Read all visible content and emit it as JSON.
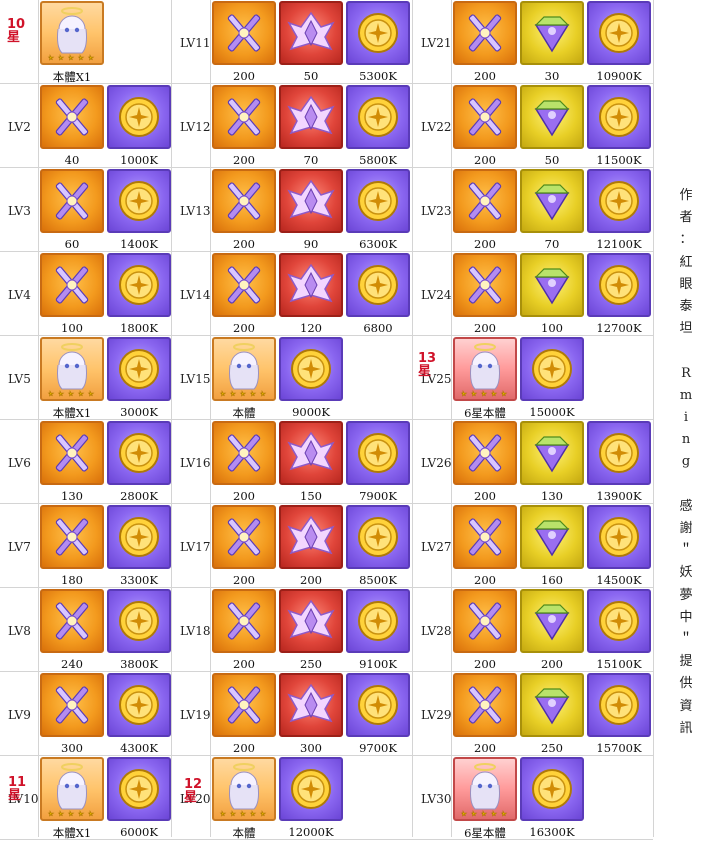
{
  "icons": {
    "orange": "crossed-blades-icon",
    "purple": "gold-coin-icon",
    "red": "winged-crystal-icon",
    "yellow": "green-gem-icon",
    "char": "character-portrait-icon"
  },
  "star_notes": [
    "10\n星",
    "11\n星",
    "12\n星",
    "13\n星"
  ],
  "credit_lines": [
    "作",
    "者",
    "：",
    "紅",
    "眼",
    "泰",
    "坦",
    "",
    "R",
    "m",
    "i",
    "n",
    "g",
    "",
    "感",
    "謝",
    "＂",
    "妖",
    "夢",
    "中",
    "＂",
    "提",
    "供",
    "資",
    "訊"
  ],
  "columns": [
    {
      "rows": [
        {
          "label": "",
          "items": [
            {
              "type": "char",
              "value": "本體X1"
            }
          ]
        },
        {
          "label": "LV2",
          "items": [
            {
              "type": "orange",
              "value": "40"
            },
            {
              "type": "purple",
              "value": "1000K"
            }
          ]
        },
        {
          "label": "LV3",
          "items": [
            {
              "type": "orange",
              "value": "60"
            },
            {
              "type": "purple",
              "value": "1400K"
            }
          ]
        },
        {
          "label": "LV4",
          "items": [
            {
              "type": "orange",
              "value": "100"
            },
            {
              "type": "purple",
              "value": "1800K"
            }
          ]
        },
        {
          "label": "LV5",
          "items": [
            {
              "type": "char",
              "value": "本體X1"
            },
            {
              "type": "purple",
              "value": "3000K"
            }
          ]
        },
        {
          "label": "LV6",
          "items": [
            {
              "type": "orange",
              "value": "130"
            },
            {
              "type": "purple",
              "value": "2800K"
            }
          ]
        },
        {
          "label": "LV7",
          "items": [
            {
              "type": "orange",
              "value": "180"
            },
            {
              "type": "purple",
              "value": "3300K"
            }
          ]
        },
        {
          "label": "LV8",
          "items": [
            {
              "type": "orange",
              "value": "240"
            },
            {
              "type": "purple",
              "value": "3800K"
            }
          ]
        },
        {
          "label": "LV9",
          "items": [
            {
              "type": "orange",
              "value": "300"
            },
            {
              "type": "purple",
              "value": "4300K"
            }
          ]
        },
        {
          "label": "LV10",
          "items": [
            {
              "type": "char",
              "value": "本體X1"
            },
            {
              "type": "purple",
              "value": "6000K"
            }
          ]
        }
      ]
    },
    {
      "rows": [
        {
          "label": "LV11",
          "items": [
            {
              "type": "orange",
              "value": "200"
            },
            {
              "type": "red",
              "value": "50"
            },
            {
              "type": "purple",
              "value": "5300K"
            }
          ]
        },
        {
          "label": "LV12",
          "items": [
            {
              "type": "orange",
              "value": "200"
            },
            {
              "type": "red",
              "value": "70"
            },
            {
              "type": "purple",
              "value": "5800K"
            }
          ]
        },
        {
          "label": "LV13",
          "items": [
            {
              "type": "orange",
              "value": "200"
            },
            {
              "type": "red",
              "value": "90"
            },
            {
              "type": "purple",
              "value": "6300K"
            }
          ]
        },
        {
          "label": "LV14",
          "items": [
            {
              "type": "orange",
              "value": "200"
            },
            {
              "type": "red",
              "value": "120"
            },
            {
              "type": "purple",
              "value": "6800"
            }
          ]
        },
        {
          "label": "LV15",
          "items": [
            {
              "type": "char",
              "value": "本體"
            },
            {
              "type": "purple",
              "value": "9000K"
            }
          ]
        },
        {
          "label": "LV16",
          "items": [
            {
              "type": "orange",
              "value": "200"
            },
            {
              "type": "red",
              "value": "150"
            },
            {
              "type": "purple",
              "value": "7900K"
            }
          ]
        },
        {
          "label": "LV17",
          "items": [
            {
              "type": "orange",
              "value": "200"
            },
            {
              "type": "red",
              "value": "200"
            },
            {
              "type": "purple",
              "value": "8500K"
            }
          ]
        },
        {
          "label": "LV18",
          "items": [
            {
              "type": "orange",
              "value": "200"
            },
            {
              "type": "red",
              "value": "250"
            },
            {
              "type": "purple",
              "value": "9100K"
            }
          ]
        },
        {
          "label": "LV19",
          "items": [
            {
              "type": "orange",
              "value": "200"
            },
            {
              "type": "red",
              "value": "300"
            },
            {
              "type": "purple",
              "value": "9700K"
            }
          ]
        },
        {
          "label": "LV20",
          "items": [
            {
              "type": "char",
              "value": "本體"
            },
            {
              "type": "purple",
              "value": "12000K"
            }
          ]
        }
      ]
    },
    {
      "rows": [
        {
          "label": "LV21",
          "items": [
            {
              "type": "orange",
              "value": "200"
            },
            {
              "type": "yellow",
              "value": "30"
            },
            {
              "type": "purple",
              "value": "10900K"
            }
          ]
        },
        {
          "label": "LV22",
          "items": [
            {
              "type": "orange",
              "value": "200"
            },
            {
              "type": "yellow",
              "value": "50"
            },
            {
              "type": "purple",
              "value": "11500K"
            }
          ]
        },
        {
          "label": "LV23",
          "items": [
            {
              "type": "orange",
              "value": "200"
            },
            {
              "type": "yellow",
              "value": "70"
            },
            {
              "type": "purple",
              "value": "12100K"
            }
          ]
        },
        {
          "label": "LV24",
          "items": [
            {
              "type": "orange",
              "value": "200"
            },
            {
              "type": "yellow",
              "value": "100"
            },
            {
              "type": "purple",
              "value": "12700K"
            }
          ]
        },
        {
          "label": "LV25",
          "items": [
            {
              "type": "char6",
              "value": "6星本體"
            },
            {
              "type": "purple",
              "value": "15000K"
            }
          ]
        },
        {
          "label": "LV26",
          "items": [
            {
              "type": "orange",
              "value": "200"
            },
            {
              "type": "yellow",
              "value": "130"
            },
            {
              "type": "purple",
              "value": "13900K"
            }
          ]
        },
        {
          "label": "LV27",
          "items": [
            {
              "type": "orange",
              "value": "200"
            },
            {
              "type": "yellow",
              "value": "160"
            },
            {
              "type": "purple",
              "value": "14500K"
            }
          ]
        },
        {
          "label": "LV28",
          "items": [
            {
              "type": "orange",
              "value": "200"
            },
            {
              "type": "yellow",
              "value": "200"
            },
            {
              "type": "purple",
              "value": "15100K"
            }
          ]
        },
        {
          "label": "LV29",
          "items": [
            {
              "type": "orange",
              "value": "200"
            },
            {
              "type": "yellow",
              "value": "250"
            },
            {
              "type": "purple",
              "value": "15700K"
            }
          ]
        },
        {
          "label": "LV30",
          "items": [
            {
              "type": "char6",
              "value": "6星本體"
            },
            {
              "type": "purple",
              "value": "16300K"
            }
          ]
        }
      ]
    }
  ]
}
